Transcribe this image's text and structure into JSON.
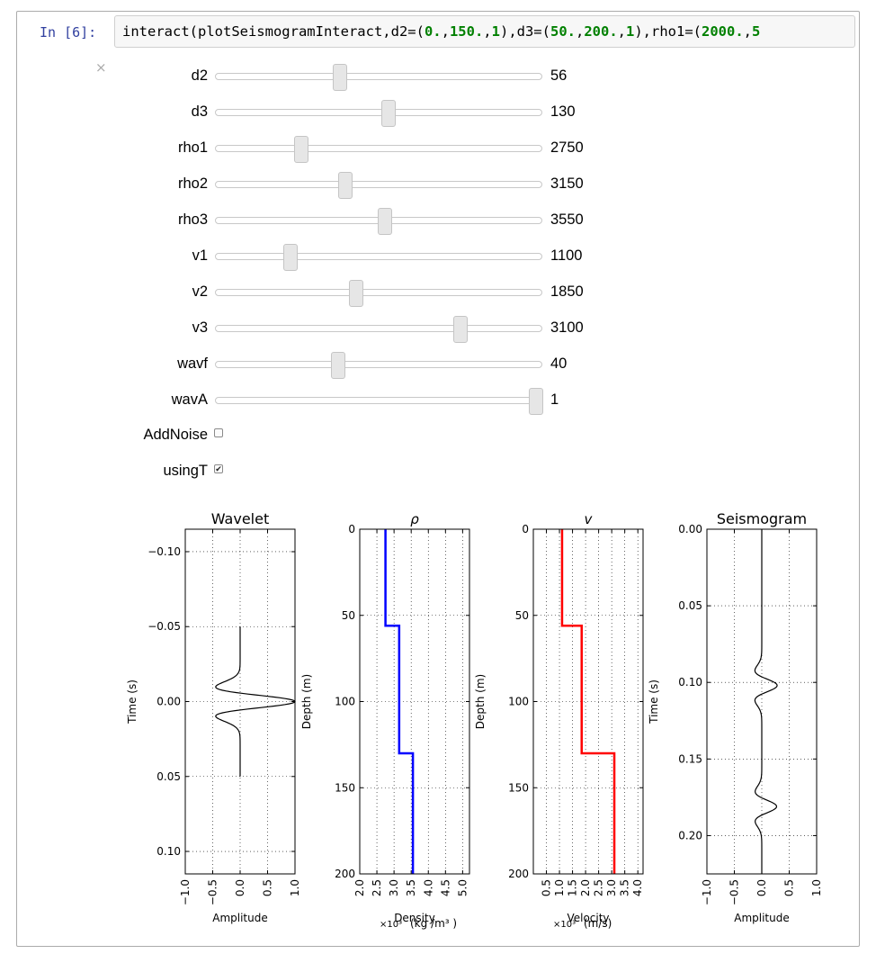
{
  "cell": {
    "prompt": "In [6]:",
    "code_segments": [
      {
        "t": "interact(plotSeismogramInteract,d2=(",
        "c": "plain"
      },
      {
        "t": "0.",
        "c": "num"
      },
      {
        "t": ",",
        "c": "plain"
      },
      {
        "t": "150.",
        "c": "num"
      },
      {
        "t": ",",
        "c": "plain"
      },
      {
        "t": "1",
        "c": "num"
      },
      {
        "t": "),d3=(",
        "c": "plain"
      },
      {
        "t": "50.",
        "c": "num"
      },
      {
        "t": ",",
        "c": "plain"
      },
      {
        "t": "200.",
        "c": "num"
      },
      {
        "t": ",",
        "c": "plain"
      },
      {
        "t": "1",
        "c": "num"
      },
      {
        "t": "),rho1=(",
        "c": "plain"
      },
      {
        "t": "2000.",
        "c": "num"
      },
      {
        "t": ",",
        "c": "plain"
      },
      {
        "t": "5",
        "c": "num"
      }
    ],
    "close_symbol": "×"
  },
  "sliders": [
    {
      "name": "d2",
      "label": "d2",
      "value": "56",
      "fraction": 0.373
    },
    {
      "name": "d3",
      "label": "d3",
      "value": "130",
      "fraction": 0.53
    },
    {
      "name": "rho1",
      "label": "rho1",
      "value": "2750",
      "fraction": 0.25
    },
    {
      "name": "rho2",
      "label": "rho2",
      "value": "3150",
      "fraction": 0.39
    },
    {
      "name": "rho3",
      "label": "rho3",
      "value": "3550",
      "fraction": 0.517
    },
    {
      "name": "v1",
      "label": "v1",
      "value": "1100",
      "fraction": 0.215
    },
    {
      "name": "v2",
      "label": "v2",
      "value": "1850",
      "fraction": 0.425
    },
    {
      "name": "v3",
      "label": "v3",
      "value": "3100",
      "fraction": 0.758
    },
    {
      "name": "wavf",
      "label": "wavf",
      "value": "40",
      "fraction": 0.367
    },
    {
      "name": "wavA",
      "label": "wavA",
      "value": "1",
      "fraction": 1.0
    }
  ],
  "checkboxes": [
    {
      "name": "add-noise",
      "label": "AddNoise",
      "checked": false
    },
    {
      "name": "using-t",
      "label": "usingT",
      "checked": true
    }
  ],
  "check_glyph": "✔",
  "chart_data": [
    {
      "type": "line",
      "title": "Wavelet",
      "xlabel": "Amplitude",
      "ylabel": "Time (s)",
      "y_inverted": true,
      "xlim": [
        -1.0,
        1.0
      ],
      "ylim": [
        -0.115,
        0.115
      ],
      "xticks": [
        "−1.0",
        "−0.5",
        "0.0",
        "0.5",
        "1.0"
      ],
      "xtick_values": [
        -1.0,
        -0.5,
        0.0,
        0.5,
        1.0
      ],
      "yticks": [
        "−0.10",
        "−0.05",
        "0.00",
        "0.05",
        "0.10"
      ],
      "ytick_values": [
        -0.1,
        -0.05,
        0.0,
        0.05,
        0.1
      ],
      "grid": true,
      "line_color": "#000000",
      "series": [
        {
          "kind": "ricker",
          "f": 40,
          "amp": 1.0,
          "t_range": [
            -0.05,
            0.05
          ]
        }
      ]
    },
    {
      "type": "line",
      "title": "ρ",
      "xlabel": "Density",
      "xlabel_unit": "(kg /m³ )",
      "x_multiplier": "×10³",
      "ylabel": "Depth (m)",
      "y_inverted": true,
      "xlim": [
        2.0,
        5.2
      ],
      "ylim": [
        0,
        200
      ],
      "xticks": [
        "2.0",
        "2.5",
        "3.0",
        "3.5",
        "4.0",
        "4.5",
        "5.0"
      ],
      "xtick_values": [
        2.0,
        2.5,
        3.0,
        3.5,
        4.0,
        4.5,
        5.0
      ],
      "yticks": [
        "0",
        "50",
        "100",
        "150",
        "200"
      ],
      "ytick_values": [
        0,
        50,
        100,
        150,
        200
      ],
      "grid": true,
      "line_color": "#0000ff",
      "series": [
        {
          "kind": "step",
          "layers": [
            {
              "from": 0,
              "to": 56,
              "value": 2.75
            },
            {
              "from": 56,
              "to": 130,
              "value": 3.15
            },
            {
              "from": 130,
              "to": 200,
              "value": 3.55
            }
          ]
        }
      ]
    },
    {
      "type": "line",
      "title": "v",
      "xlabel": "Velocity",
      "xlabel_unit": "(m/s)",
      "x_multiplier": "×10³",
      "ylabel": "Depth (m)",
      "y_inverted": true,
      "xlim": [
        0.0,
        4.2
      ],
      "ylim": [
        0,
        200
      ],
      "xticks": [
        "0.5",
        "1.0",
        "1.5",
        "2.0",
        "2.5",
        "3.0",
        "3.5",
        "4.0"
      ],
      "xtick_values": [
        0.5,
        1.0,
        1.5,
        2.0,
        2.5,
        3.0,
        3.5,
        4.0
      ],
      "yticks": [
        "0",
        "50",
        "100",
        "150",
        "200"
      ],
      "ytick_values": [
        0,
        50,
        100,
        150,
        200
      ],
      "grid": true,
      "line_color": "#ff0000",
      "series": [
        {
          "kind": "step",
          "layers": [
            {
              "from": 0,
              "to": 56,
              "value": 1.1
            },
            {
              "from": 56,
              "to": 130,
              "value": 1.85
            },
            {
              "from": 130,
              "to": 200,
              "value": 3.1
            }
          ]
        }
      ]
    },
    {
      "type": "line",
      "title": "Seismogram",
      "xlabel": "Amplitude",
      "ylabel": "Time (s)",
      "y_inverted": true,
      "xlim": [
        -1.0,
        1.0
      ],
      "ylim": [
        0.0,
        0.225
      ],
      "xticks": [
        "−1.0",
        "−0.5",
        "0.0",
        "0.5",
        "1.0"
      ],
      "xtick_values": [
        -1.0,
        -0.5,
        0.0,
        0.5,
        1.0
      ],
      "yticks": [
        "0.00",
        "0.05",
        "0.10",
        "0.15",
        "0.20"
      ],
      "ytick_values": [
        0.0,
        0.05,
        0.1,
        0.15,
        0.2
      ],
      "grid": true,
      "line_color": "#000000",
      "series": [
        {
          "kind": "trace",
          "events": [
            {
              "t": 0.102,
              "amp": 0.28,
              "f": 40
            },
            {
              "t": 0.181,
              "amp": 0.27,
              "f": 40
            }
          ],
          "t_range": [
            0.0,
            0.225
          ]
        }
      ]
    }
  ]
}
